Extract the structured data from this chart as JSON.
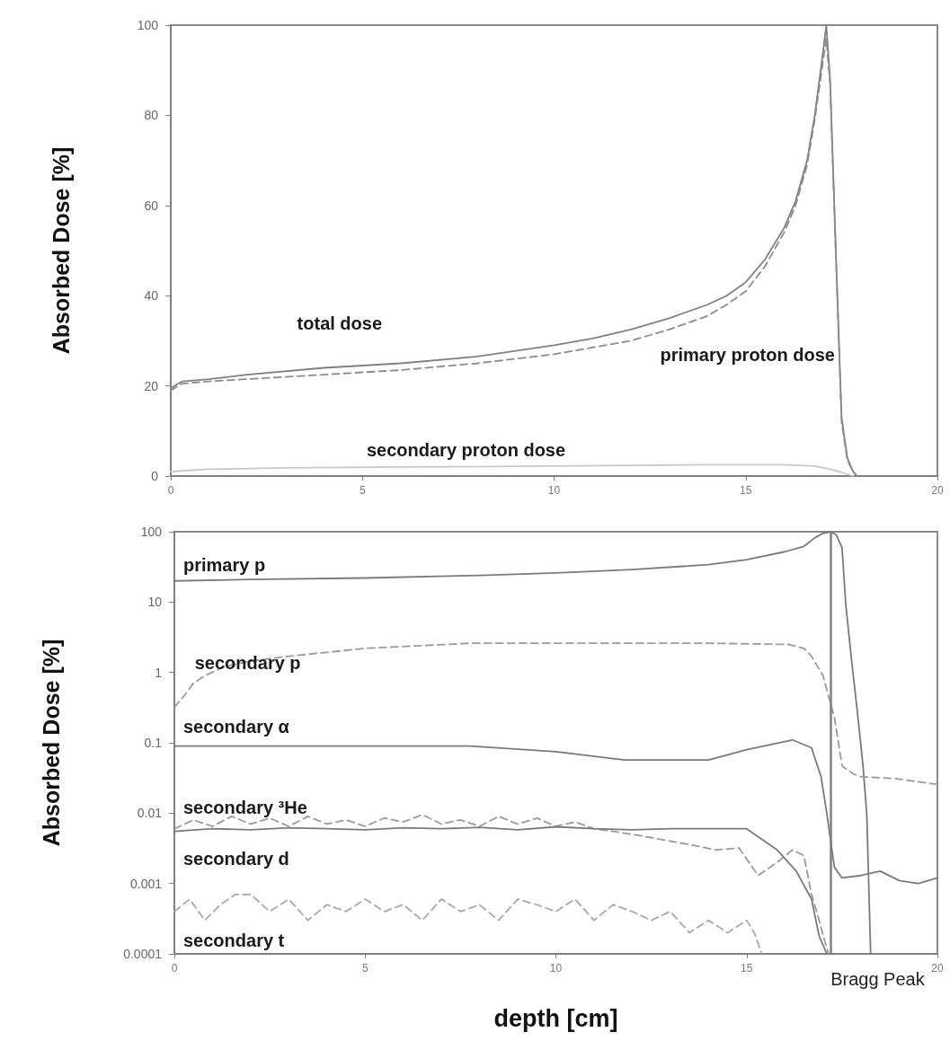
{
  "chart_data": [
    {
      "type": "line",
      "ylabel": "Absorbed Dose [%]",
      "xlim": [
        0,
        20
      ],
      "xticks": [
        0,
        5,
        10,
        15,
        20
      ],
      "ylim": [
        0,
        100
      ],
      "yticks": [
        0,
        20,
        40,
        60,
        80,
        100
      ],
      "grid": false,
      "legend": false,
      "marker": "none",
      "series": [
        {
          "name": "total dose",
          "color": "#808080",
          "line_style": "solid",
          "x": [
            0,
            0.3,
            1,
            2,
            4,
            6,
            8,
            10,
            11,
            12,
            13,
            14,
            14.5,
            15,
            15.5,
            16,
            16.3,
            16.6,
            16.8,
            17,
            17.1,
            17.2,
            17.35,
            17.5,
            17.65,
            17.8,
            17.9,
            20
          ],
          "values": [
            19.5,
            21,
            21.5,
            22.5,
            24,
            25,
            26.5,
            29,
            30.5,
            32.5,
            35,
            38,
            40,
            43,
            48,
            55,
            61,
            70,
            80,
            93,
            100,
            88,
            50,
            13,
            4,
            1,
            0,
            0
          ]
        },
        {
          "name": "primary proton dose",
          "color": "#8c8c8c",
          "line_style": "dashed",
          "x": [
            0,
            0.3,
            1,
            2,
            4,
            6,
            8,
            10,
            11,
            12,
            13,
            14,
            14.5,
            15,
            15.5,
            16,
            16.3,
            16.6,
            16.8,
            17,
            17.1,
            17.2,
            17.35,
            17.5,
            17.65,
            17.8,
            17.9
          ],
          "values": [
            19,
            20.5,
            21,
            21.5,
            22.5,
            23.5,
            25,
            27,
            28.5,
            30,
            32.5,
            35.5,
            38,
            41,
            46.5,
            54,
            60,
            69,
            79,
            91,
            97,
            87,
            49,
            12,
            3.5,
            1,
            0
          ]
        },
        {
          "name": "secondary proton dose",
          "color": "#c8c8c8",
          "line_style": "solid",
          "x": [
            0,
            1,
            3,
            6,
            10,
            14,
            16,
            16.8,
            17.2,
            17.5,
            17.8
          ],
          "values": [
            1,
            1.5,
            1.8,
            2,
            2.2,
            2.5,
            2.5,
            2.2,
            1.5,
            0.8,
            0
          ]
        }
      ]
    },
    {
      "type": "line",
      "xlabel": "depth [cm]",
      "ylabel": "Absorbed Dose [%]",
      "log": "y",
      "xlim": [
        0,
        20
      ],
      "xticks": [
        0,
        5,
        10,
        15,
        20
      ],
      "ylim": [
        0.0001,
        100
      ],
      "yticks": [
        0.0001,
        0.001,
        0.01,
        0.1,
        1,
        10,
        100
      ],
      "grid": false,
      "legend": false,
      "marker": "none",
      "ref_lines": [
        {
          "axis": "x",
          "value": 17.2,
          "label": "Bragg Peak",
          "color": "#808080"
        }
      ],
      "series": [
        {
          "name": "primary p",
          "color": "#7a7a7a",
          "line_style": "solid",
          "x": [
            0,
            2,
            5,
            8,
            10,
            12,
            14,
            15,
            16,
            16.5,
            16.8,
            17,
            17.2,
            17.35,
            17.5,
            17.6,
            17.75,
            17.9,
            18.05,
            18.15,
            18.25
          ],
          "values": [
            20,
            21,
            22,
            24,
            26,
            29,
            34,
            40,
            52,
            62,
            83,
            95,
            100,
            90,
            59,
            9,
            1.5,
            0.28,
            0.047,
            0.0093,
            0.0001
          ]
        },
        {
          "name": "secondary p",
          "color": "#9a9a9a",
          "line_style": "dashed",
          "x": [
            0,
            0.3,
            0.5,
            0.8,
            1.3,
            2,
            3,
            5,
            7.75,
            10,
            14,
            16.1,
            16.5,
            16.7,
            17,
            17.3,
            17.5,
            17.8,
            18,
            18.9,
            19.9,
            20
          ],
          "values": [
            0.32,
            0.5,
            0.7,
            0.9,
            1.2,
            1.45,
            1.7,
            2.2,
            2.6,
            2.6,
            2.6,
            2.5,
            2.2,
            1.7,
            0.9,
            0.23,
            0.047,
            0.036,
            0.033,
            0.031,
            0.026,
            0.026
          ]
        },
        {
          "name": "secondary α",
          "color": "#7a7a7a",
          "line_style": "solid",
          "x": [
            0,
            3,
            7.75,
            10,
            11.8,
            14,
            15,
            16.2,
            16.7,
            16.95,
            17.1,
            17.3,
            17.5,
            18,
            18.5,
            19,
            19.5,
            20
          ],
          "values": [
            0.09,
            0.09,
            0.09,
            0.075,
            0.057,
            0.057,
            0.08,
            0.11,
            0.085,
            0.033,
            0.01,
            0.0017,
            0.0012,
            0.0013,
            0.0015,
            0.0011,
            0.001,
            0.0012
          ]
        },
        {
          "name": "secondary ³He",
          "color": "#9a9a9a",
          "line_style": "dashed",
          "x": [
            0,
            0.5,
            1,
            1.5,
            2,
            2.5,
            3,
            3.5,
            4,
            4.5,
            5,
            5.5,
            6,
            6.5,
            7,
            7.5,
            8,
            8.5,
            9,
            9.5,
            10,
            10.5,
            11,
            11.5,
            12,
            12.5,
            13,
            13.6,
            14.2,
            14.8,
            15.3,
            15.8,
            16.2,
            16.5,
            16.7,
            16.9,
            17.05,
            17.15
          ],
          "values": [
            0.006,
            0.008,
            0.0065,
            0.009,
            0.007,
            0.0085,
            0.0065,
            0.009,
            0.007,
            0.008,
            0.0065,
            0.0085,
            0.0075,
            0.0095,
            0.007,
            0.008,
            0.0065,
            0.009,
            0.007,
            0.0085,
            0.0065,
            0.0075,
            0.006,
            0.0055,
            0.005,
            0.0045,
            0.004,
            0.0035,
            0.003,
            0.0032,
            0.0013,
            0.002,
            0.003,
            0.0025,
            0.0007,
            0.0003,
            0.00015,
            0.0001
          ]
        },
        {
          "name": "secondary d",
          "color": "#7a7a7a",
          "line_style": "solid",
          "x": [
            0,
            1,
            2,
            3,
            4,
            5,
            6,
            7,
            8,
            9,
            10,
            11,
            12,
            13,
            14,
            15,
            15.8,
            16.3,
            16.7,
            16.9,
            17.1
          ],
          "values": [
            0.0055,
            0.006,
            0.0058,
            0.0062,
            0.006,
            0.0058,
            0.0062,
            0.006,
            0.0063,
            0.0058,
            0.0064,
            0.006,
            0.0058,
            0.006,
            0.006,
            0.006,
            0.003,
            0.0015,
            0.0006,
            0.00018,
            0.0001
          ]
        },
        {
          "name": "secondary t",
          "color": "#a8a8a8",
          "line_style": "dashed",
          "x": [
            0,
            0.4,
            0.8,
            1.2,
            1.6,
            2,
            2.5,
            3,
            3.5,
            4,
            4.5,
            5,
            5.5,
            6,
            6.5,
            7,
            7.5,
            8,
            8.5,
            9,
            9.5,
            10,
            10.5,
            11,
            11.5,
            12,
            12.5,
            13,
            13.5,
            14,
            14.5,
            15,
            15.2,
            15.4
          ],
          "values": [
            0.0004,
            0.0006,
            0.0003,
            0.0005,
            0.0007,
            0.0007,
            0.0004,
            0.0006,
            0.0003,
            0.0005,
            0.0004,
            0.0006,
            0.0004,
            0.0005,
            0.0003,
            0.0006,
            0.0004,
            0.0005,
            0.0003,
            0.0006,
            0.0005,
            0.0004,
            0.0006,
            0.0003,
            0.0005,
            0.0004,
            0.0003,
            0.0004,
            0.0002,
            0.0003,
            0.0002,
            0.0003,
            0.0002,
            0.0001
          ]
        }
      ]
    }
  ]
}
